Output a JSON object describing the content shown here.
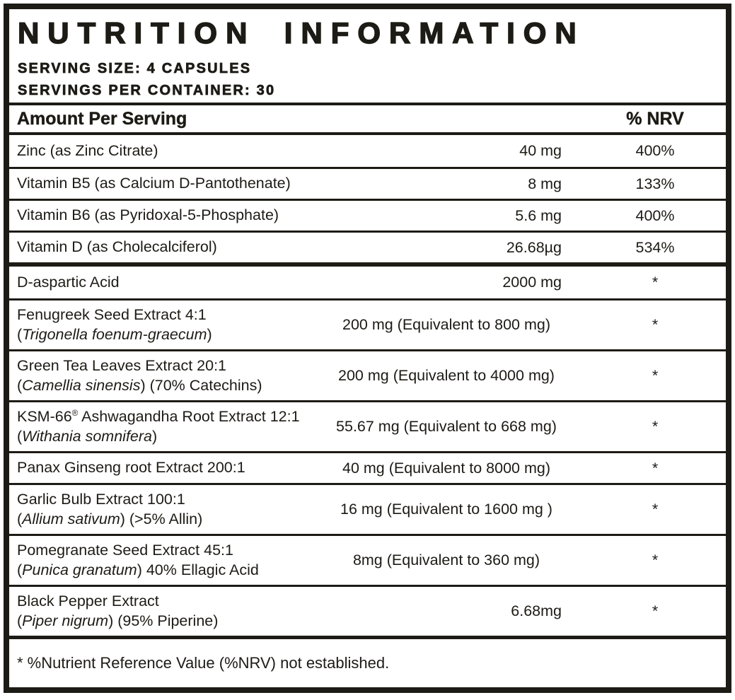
{
  "title": "NUTRITION INFORMATION",
  "serving": {
    "size_label": "SERVING SIZE: 4 CAPSULES",
    "per_container_label": "SERVINGS PER CONTAINER: 30"
  },
  "table": {
    "header": {
      "amount": "Amount Per Serving",
      "nrv": "% NRV"
    },
    "sections": [
      {
        "rows": [
          {
            "name": "Zinc (as Zinc Citrate)",
            "amount": "40 mg",
            "nrv": "400%"
          },
          {
            "name": "Vitamin B5 (as Calcium D-Pantothenate)",
            "amount": "8 mg",
            "nrv": "133%"
          },
          {
            "name": "Vitamin B6 (as Pyridoxal-5-Phosphate)",
            "amount": "5.6 mg",
            "nrv": "400%"
          },
          {
            "name": "Vitamin D (as Cholecalciferol)",
            "amount": "26.68µg",
            "nrv": "534%"
          }
        ]
      },
      {
        "rows": [
          {
            "name": "D-aspartic Acid",
            "amount": "2000 mg",
            "nrv": "*"
          },
          {
            "name": "Fenugreek Seed Extract 4:1",
            "latin": "Trigonella foenum-graecum",
            "latin_suffix": "",
            "amount": "200 mg (Equivalent to 800 mg)",
            "nrv": "*"
          },
          {
            "name": "Green Tea Leaves Extract 20:1",
            "latin": "Camellia sinensis",
            "latin_suffix": " (70% Catechins)",
            "amount": "200 mg (Equivalent to 4000 mg)",
            "nrv": "*"
          },
          {
            "name": "KSM-66® Ashwagandha Root Extract 12:1",
            "latin": "Withania somnifera",
            "latin_suffix": "",
            "amount": "55.67 mg (Equivalent to 668 mg)",
            "nrv": "*"
          },
          {
            "name": "Panax Ginseng root Extract 200:1",
            "amount": "40 mg (Equivalent to 8000 mg)",
            "nrv": "*"
          },
          {
            "name": "Garlic Bulb Extract 100:1",
            "latin": "Allium sativum",
            "latin_suffix": " (>5% Allin)",
            "amount": "16 mg (Equivalent to 1600 mg )",
            "nrv": "*"
          },
          {
            "name": "Pomegranate Seed Extract 45:1",
            "latin": "Punica granatum",
            "latin_suffix": " 40% Ellagic Acid",
            "amount": "8mg (Equivalent to 360 mg)",
            "nrv": "*"
          },
          {
            "name": "Black Pepper Extract",
            "latin": "Piper nigrum",
            "latin_suffix": " (95% Piperine)",
            "amount": "6.68mg",
            "nrv": "*"
          }
        ]
      }
    ],
    "footnote": "* %Nutrient Reference Value (%NRV) not established."
  },
  "colors": {
    "ink": "#1d1b15",
    "paper": "#ffffff"
  }
}
